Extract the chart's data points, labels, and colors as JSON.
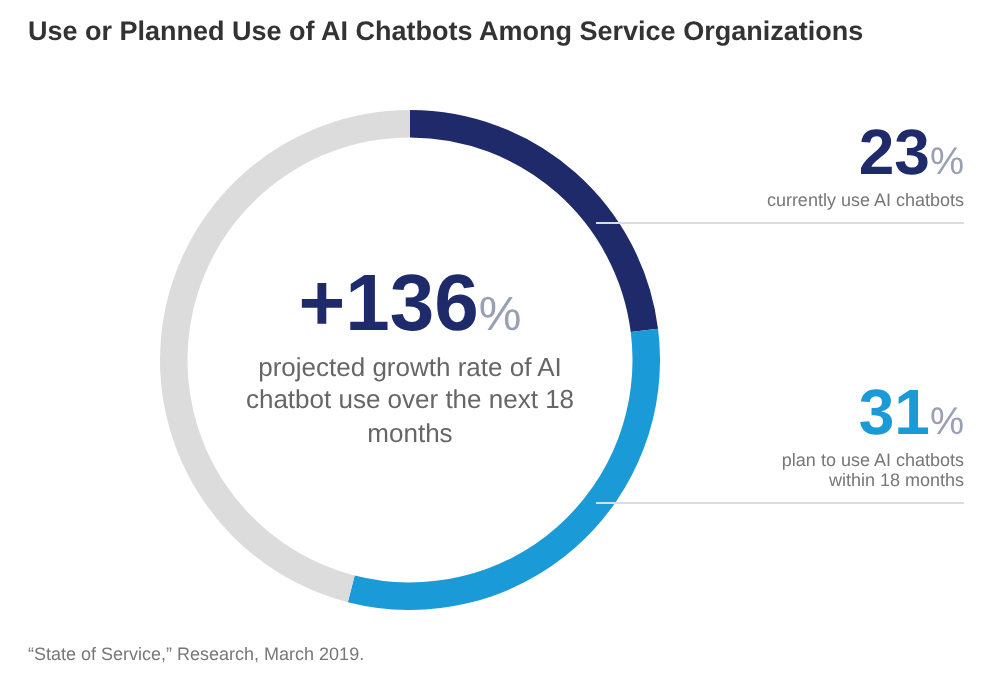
{
  "chart_data": {
    "type": "donut",
    "title": "Use or Planned Use of AI Chatbots Among Service Organizations",
    "categories": [
      "currently use AI chatbots",
      "plan to use AI chatbots within 18 months",
      null
    ],
    "values": [
      23,
      31,
      46
    ],
    "colors": [
      "#1f2a6b",
      "#1a9ad6",
      "#dcdcdc"
    ],
    "value_labels": [
      "23%",
      "31%",
      null
    ],
    "annotations": [
      "+136%",
      "projected growth rate of AI chatbot use over the next 18 months",
      "“State of Service,” Research, March 2019."
    ]
  }
}
